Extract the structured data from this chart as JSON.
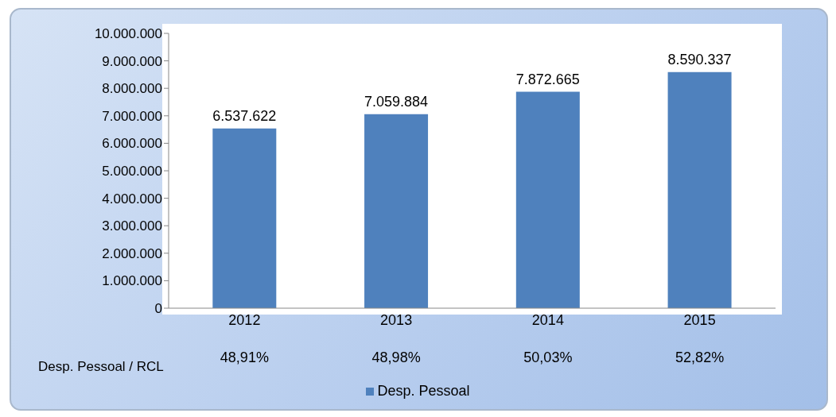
{
  "chart_data": {
    "type": "bar",
    "categories": [
      "2012",
      "2013",
      "2014",
      "2015"
    ],
    "series": [
      {
        "name": "Desp. Pessoal",
        "color": "#4f81bd",
        "values": [
          6537622,
          7059884,
          7872665,
          8590337
        ],
        "value_labels": [
          "6.537.622",
          "7.059.884",
          "7.872.665",
          "8.590.337"
        ]
      }
    ],
    "ylim": [
      0,
      10000000
    ],
    "yticks": [
      {
        "value": 0,
        "label": "0"
      },
      {
        "value": 1000000,
        "label": "1.000.000"
      },
      {
        "value": 2000000,
        "label": "2.000.000"
      },
      {
        "value": 3000000,
        "label": "3.000.000"
      },
      {
        "value": 4000000,
        "label": "4.000.000"
      },
      {
        "value": 5000000,
        "label": "5.000.000"
      },
      {
        "value": 6000000,
        "label": "6.000.000"
      },
      {
        "value": 7000000,
        "label": "7.000.000"
      },
      {
        "value": 8000000,
        "label": "8.000.000"
      },
      {
        "value": 9000000,
        "label": "9.000.000"
      },
      {
        "value": 10000000,
        "label": "10.000.000"
      }
    ],
    "annotations": [
      "Desp. Pessoal  / RCL",
      "48,91%",
      "48,98%",
      "50,03%",
      "52,82%"
    ],
    "legend": "bottom",
    "grid": false
  }
}
